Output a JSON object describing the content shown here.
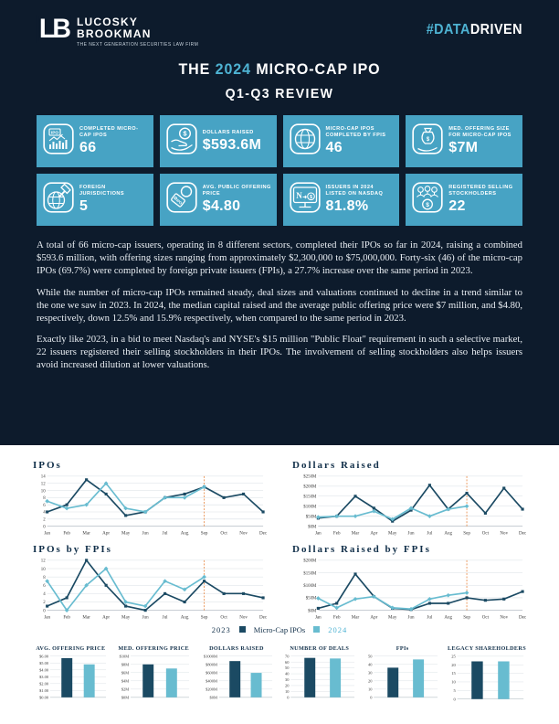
{
  "colors": {
    "page_bg": "#0d1b2c",
    "card_bg": "#47a3c4",
    "accent_teal": "#4eb3d3",
    "line_2023": "#1b4a63",
    "line_2024": "#68bcd0",
    "cutoff_orange": "#e8833a",
    "grid_gray": "#d9dfe4",
    "tick_text": "#3a3a3a",
    "chart_title": "#12304a"
  },
  "header": {
    "logo_mark": "LB",
    "logo_line1": "LUCOSKY",
    "logo_line2": "BROOKMAN",
    "tagline": "THE NEXT GENERATION SECURITIES LAW FIRM",
    "hashtag_prefix": "#",
    "hashtag_data": "DATA",
    "hashtag_driven": "DRIVEN"
  },
  "title": {
    "pre": "THE ",
    "year": "2024",
    "post": " MICRO-CAP IPO",
    "line2": "Q1-Q3 REVIEW"
  },
  "stats": [
    {
      "icon": "ipo-chart-icon",
      "label": "COMPLETED MICRO-CAP IPOS",
      "value": "66"
    },
    {
      "icon": "hand-dollar-icon",
      "label": "DOLLARS RAISED",
      "value": "$593.6M"
    },
    {
      "icon": "globe-icon",
      "label": "MICRO-CAP IPOS COMPLETED BY FPIS",
      "value": "46"
    },
    {
      "icon": "hand-bag-icon",
      "label": "MED. OFFERING SIZE FOR MICRO-CAP IPOS",
      "value": "$7M"
    },
    {
      "icon": "globe-gavel-icon",
      "label": "FOREIGN JURISDICTIONS",
      "value": "5"
    },
    {
      "icon": "price-tag-icon",
      "label": "AVG. PUBLIC OFFERING PRICE",
      "value": "$4.80"
    },
    {
      "icon": "nasdaq-monitor-icon",
      "label": "ISSUERS IN 2024 LISTED ON NASDAQ",
      "value": "81.8%"
    },
    {
      "icon": "people-coin-icon",
      "label": "REGISTERED SELLING STOCKHOLDERS",
      "value": "22"
    }
  ],
  "paragraphs": [
    "A total of 66 micro-cap issuers, operating in 8 different sectors, completed their IPOs so far in 2024, raising a combined $593.6 million, with offering sizes ranging from approximately $2,300,000 to $75,000,000. Forty-six (46) of the micro-cap IPOs (69.7%) were completed by foreign private issuers (FPIs), a 27.7% increase over the same period in 2023.",
    "While the number of micro-cap IPOs remained steady, deal sizes and valuations continued to decline in a trend similar to the one we saw in 2023. In 2024, the median capital raised and the average public offering price were $7 million, and $4.80, respectively, down 12.5% and 15.9% respectively, when compared to the same period in 2023.",
    "Exactly like 2023, in a bid to meet Nasdaq's and NYSE's $15 million \"Public Float\" requirement in such a selective market, 22 issuers registered their selling stockholders in their IPOs. The involvement of selling stockholders also helps issuers avoid increased dilution at lower valuations."
  ],
  "legend": {
    "label_2023": "2023",
    "center": "Micro-Cap IPOs",
    "label_2024": "2024"
  },
  "chart_data": [
    {
      "type": "line",
      "title": "IPOs",
      "categories": [
        "Jan",
        "Feb",
        "Mar",
        "Apr",
        "May",
        "Jun",
        "Jul",
        "Aug",
        "Sep",
        "Oct",
        "Nov",
        "Dec"
      ],
      "ylim": [
        0,
        14
      ],
      "ystep": 2,
      "yfmt": "plain",
      "cutoff": "Sep",
      "grid": true,
      "legend_position": "below",
      "series": [
        {
          "name": "2023",
          "values": [
            4,
            6,
            13,
            9,
            3,
            4,
            8,
            9,
            11,
            8,
            9,
            4
          ]
        },
        {
          "name": "2024",
          "values": [
            7,
            5,
            6,
            12,
            5,
            4,
            8,
            8,
            11
          ]
        }
      ]
    },
    {
      "type": "line",
      "title": "Dollars Raised",
      "categories": [
        "Jan",
        "Feb",
        "Mar",
        "Apr",
        "May",
        "Jun",
        "Jul",
        "Aug",
        "Sep",
        "Oct",
        "Nov",
        "Dec"
      ],
      "ylim": [
        0,
        250
      ],
      "ystep": 50,
      "yfmt": "money",
      "cutoff": "Sep",
      "grid": true,
      "legend_position": "below",
      "series": [
        {
          "name": "2023",
          "values": [
            40,
            50,
            150,
            90,
            25,
            80,
            205,
            85,
            165,
            65,
            190,
            85
          ]
        },
        {
          "name": "2024",
          "values": [
            45,
            50,
            50,
            75,
            35,
            90,
            50,
            85,
            100
          ]
        }
      ]
    },
    {
      "type": "line",
      "title": "IPOs by FPIs",
      "categories": [
        "Jan",
        "Feb",
        "Mar",
        "Apr",
        "May",
        "Jun",
        "Jul",
        "Aug",
        "Sep",
        "Oct",
        "Nov",
        "Dec"
      ],
      "ylim": [
        0,
        12
      ],
      "ystep": 2,
      "yfmt": "plain",
      "cutoff": "Sep",
      "grid": true,
      "legend_position": "below",
      "series": [
        {
          "name": "2023",
          "values": [
            1,
            3,
            12,
            6,
            1,
            0,
            4,
            2,
            7,
            4,
            4,
            3
          ]
        },
        {
          "name": "2024",
          "values": [
            7,
            0,
            6,
            10,
            2,
            1,
            7,
            5,
            8
          ]
        }
      ]
    },
    {
      "type": "line",
      "title": "Dollars Raised by FPIs",
      "categories": [
        "Jan",
        "Feb",
        "Mar",
        "Apr",
        "May",
        "Jun",
        "Jul",
        "Aug",
        "Sep",
        "Oct",
        "Nov",
        "Dec"
      ],
      "ylim": [
        0,
        200
      ],
      "ystep": 50,
      "yfmt": "money",
      "cutoff": "Sep",
      "grid": true,
      "legend_position": "below",
      "series": [
        {
          "name": "2023",
          "values": [
            8,
            28,
            145,
            55,
            8,
            3,
            28,
            28,
            50,
            40,
            45,
            75
          ]
        },
        {
          "name": "2024",
          "values": [
            48,
            10,
            45,
            55,
            10,
            5,
            45,
            60,
            70
          ]
        }
      ]
    },
    {
      "type": "bar",
      "title": "AVG. OFFERING PRICE",
      "categories": [
        "2023",
        "2024"
      ],
      "values": [
        5.71,
        4.8
      ],
      "ylim": [
        0,
        6
      ],
      "ystep": 1,
      "yfmt": "usd2",
      "grid": true
    },
    {
      "type": "bar",
      "title": "MED. OFFERING PRICE",
      "categories": [
        "2023",
        "2024"
      ],
      "values": [
        8,
        7
      ],
      "ylim": [
        0,
        10
      ],
      "ystep": 2,
      "yfmt": "money",
      "grid": true
    },
    {
      "type": "bar",
      "title": "DOLLARS RAISED",
      "categories": [
        "2023",
        "2024"
      ],
      "values": [
        880,
        593.6
      ],
      "ylim": [
        0,
        1000
      ],
      "ystep": 200,
      "yfmt": "money",
      "grid": true
    },
    {
      "type": "bar",
      "title": "NUMBER OF DEALS",
      "categories": [
        "2023",
        "2024"
      ],
      "values": [
        67,
        66
      ],
      "ylim": [
        0,
        70
      ],
      "ystep": 10,
      "yfmt": "plain",
      "grid": true
    },
    {
      "type": "bar",
      "title": "FPIs",
      "categories": [
        "2023",
        "2024"
      ],
      "values": [
        36,
        46
      ],
      "ylim": [
        0,
        50
      ],
      "ystep": 10,
      "yfmt": "plain",
      "grid": true
    },
    {
      "type": "bar",
      "title": "LEGACY SHAREHOLDERS",
      "categories": [
        "2023",
        "2024"
      ],
      "values": [
        22,
        22
      ],
      "ylim": [
        0,
        25
      ],
      "ystep": 5,
      "yfmt": "plain",
      "grid": true
    }
  ]
}
